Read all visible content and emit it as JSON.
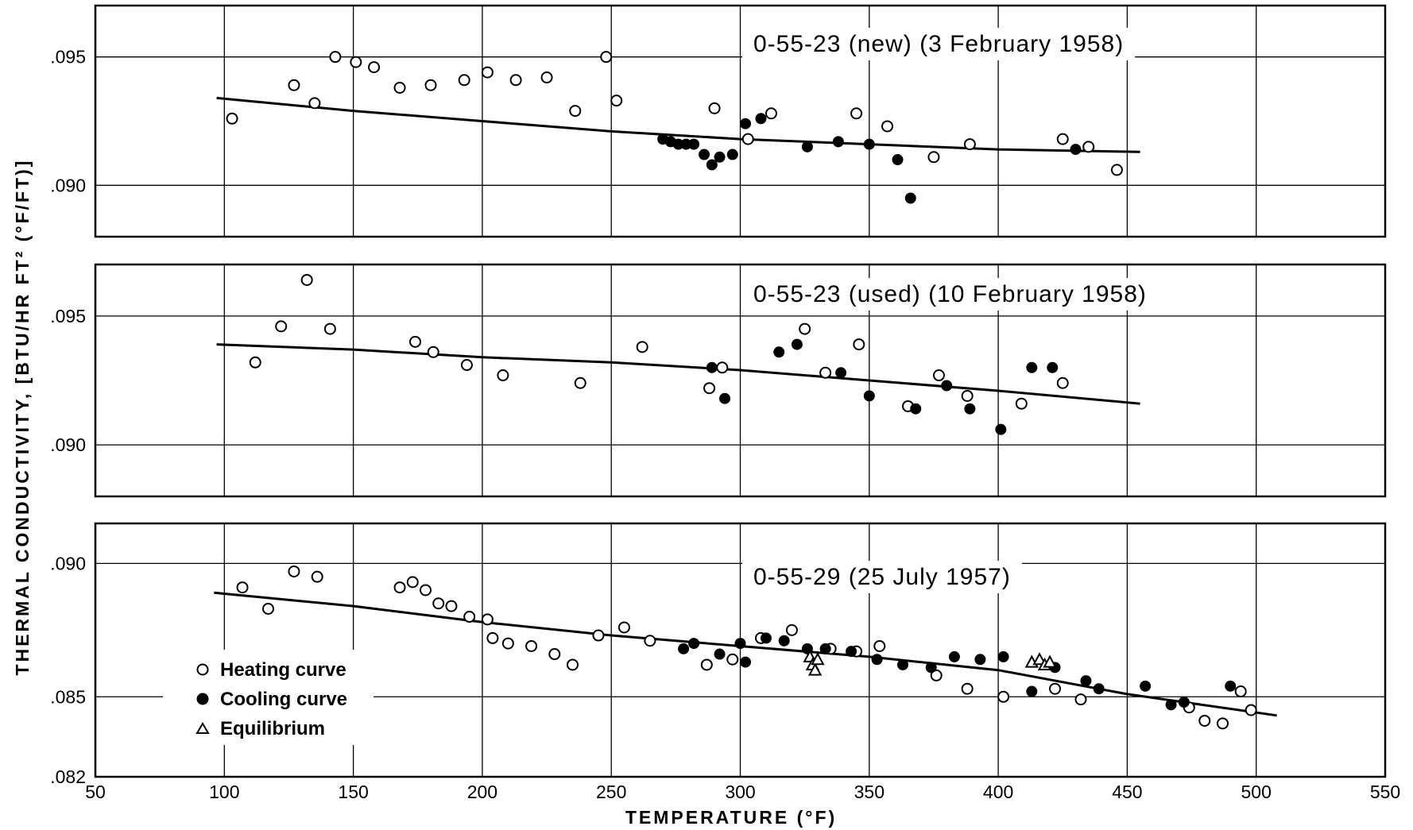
{
  "figure": {
    "xlabel": "TEMPERATURE (°F)",
    "ylabel": "THERMAL CONDUCTIVITY, [BTU/HR FT² (°F/FT)]",
    "legend": {
      "heating": "Heating curve",
      "cooling": "Cooling curve",
      "equilibrium": "Equilibrium"
    }
  },
  "chart_data": [
    {
      "type": "scatter",
      "title": "0-55-23 (new) (3 February 1958)",
      "xlabel": "TEMPERATURE (°F)",
      "ylabel": "THERMAL CONDUCTIVITY, [BTU/HR FT² (°F/FT)]",
      "xlim": [
        50,
        550
      ],
      "ylim": [
        0.088,
        0.097
      ],
      "x_ticks": [
        "50",
        "100",
        "150",
        "200",
        "250",
        "300",
        "350",
        "400",
        "450",
        "500",
        "550"
      ],
      "y_ticks": [
        {
          "value": 0.095,
          "label": ".095"
        },
        {
          "value": 0.09,
          "label": ".090"
        }
      ],
      "grid": true,
      "series": [
        {
          "name": "Heating curve",
          "marker": "open-circle",
          "points": [
            [
              103,
              0.0926
            ],
            [
              127,
              0.0939
            ],
            [
              135,
              0.0932
            ],
            [
              143,
              0.095
            ],
            [
              151,
              0.0948
            ],
            [
              158,
              0.0946
            ],
            [
              168,
              0.0938
            ],
            [
              180,
              0.0939
            ],
            [
              193,
              0.0941
            ],
            [
              202,
              0.0944
            ],
            [
              213,
              0.0941
            ],
            [
              225,
              0.0942
            ],
            [
              236,
              0.0929
            ],
            [
              248,
              0.095
            ],
            [
              252,
              0.0933
            ],
            [
              290,
              0.093
            ],
            [
              303,
              0.0918
            ],
            [
              312,
              0.0928
            ],
            [
              345,
              0.0928
            ],
            [
              357,
              0.0923
            ],
            [
              375,
              0.0911
            ],
            [
              389,
              0.0916
            ],
            [
              425,
              0.0918
            ],
            [
              435,
              0.0915
            ],
            [
              446,
              0.0906
            ]
          ]
        },
        {
          "name": "Cooling curve",
          "marker": "filled-circle",
          "points": [
            [
              270,
              0.0918
            ],
            [
              273,
              0.0917
            ],
            [
              276,
              0.0916
            ],
            [
              279,
              0.0916
            ],
            [
              282,
              0.0916
            ],
            [
              286,
              0.0912
            ],
            [
              289,
              0.0908
            ],
            [
              292,
              0.0911
            ],
            [
              297,
              0.0912
            ],
            [
              302,
              0.0924
            ],
            [
              308,
              0.0926
            ],
            [
              326,
              0.0915
            ],
            [
              338,
              0.0917
            ],
            [
              350,
              0.0916
            ],
            [
              361,
              0.091
            ],
            [
              366,
              0.0895
            ],
            [
              430,
              0.0914
            ]
          ]
        },
        {
          "name": "fit",
          "marker": "line",
          "points": [
            [
              97,
              0.0934
            ],
            [
              150,
              0.0929
            ],
            [
              200,
              0.0925
            ],
            [
              250,
              0.0921
            ],
            [
              300,
              0.0918
            ],
            [
              350,
              0.0916
            ],
            [
              400,
              0.0914
            ],
            [
              455,
              0.0913
            ]
          ]
        }
      ]
    },
    {
      "type": "scatter",
      "title": "0-55-23 (used) (10 February 1958)",
      "xlabel": "TEMPERATURE (°F)",
      "ylabel": "THERMAL CONDUCTIVITY, [BTU/HR FT² (°F/FT)]",
      "xlim": [
        50,
        550
      ],
      "ylim": [
        0.088,
        0.097
      ],
      "x_ticks": [
        "50",
        "100",
        "150",
        "200",
        "250",
        "300",
        "350",
        "400",
        "450",
        "500",
        "550"
      ],
      "y_ticks": [
        {
          "value": 0.095,
          "label": ".095"
        },
        {
          "value": 0.09,
          "label": ".090"
        }
      ],
      "grid": true,
      "series": [
        {
          "name": "Heating curve",
          "marker": "open-circle",
          "points": [
            [
              112,
              0.0932
            ],
            [
              122,
              0.0946
            ],
            [
              132,
              0.0964
            ],
            [
              141,
              0.0945
            ],
            [
              174,
              0.094
            ],
            [
              181,
              0.0936
            ],
            [
              194,
              0.0931
            ],
            [
              208,
              0.0927
            ],
            [
              238,
              0.0924
            ],
            [
              262,
              0.0938
            ],
            [
              288,
              0.0922
            ],
            [
              293,
              0.093
            ],
            [
              325,
              0.0945
            ],
            [
              333,
              0.0928
            ],
            [
              346,
              0.0939
            ],
            [
              365,
              0.0915
            ],
            [
              377,
              0.0927
            ],
            [
              388,
              0.0919
            ],
            [
              409,
              0.0916
            ],
            [
              425,
              0.0924
            ]
          ]
        },
        {
          "name": "Cooling curve",
          "marker": "filled-circle",
          "points": [
            [
              289,
              0.093
            ],
            [
              294,
              0.0918
            ],
            [
              315,
              0.0936
            ],
            [
              322,
              0.0939
            ],
            [
              339,
              0.0928
            ],
            [
              350,
              0.0919
            ],
            [
              368,
              0.0914
            ],
            [
              380,
              0.0923
            ],
            [
              389,
              0.0914
            ],
            [
              401,
              0.0906
            ],
            [
              413,
              0.093
            ],
            [
              421,
              0.093
            ]
          ]
        },
        {
          "name": "fit",
          "marker": "line",
          "points": [
            [
              97,
              0.0939
            ],
            [
              150,
              0.0937
            ],
            [
              200,
              0.0934
            ],
            [
              250,
              0.0932
            ],
            [
              300,
              0.0929
            ],
            [
              350,
              0.0925
            ],
            [
              400,
              0.0921
            ],
            [
              455,
              0.0916
            ]
          ]
        }
      ]
    },
    {
      "type": "scatter",
      "title": "0-55-29 (25 July 1957)",
      "xlabel": "TEMPERATURE (°F)",
      "ylabel": "THERMAL CONDUCTIVITY, [BTU/HR FT² (°F/FT)]",
      "xlim": [
        50,
        550
      ],
      "ylim": [
        0.082,
        0.0915
      ],
      "x_ticks": [
        "50",
        "100",
        "150",
        "200",
        "250",
        "300",
        "350",
        "400",
        "450",
        "500",
        "550"
      ],
      "y_ticks": [
        {
          "value": 0.09,
          "label": ".090"
        },
        {
          "value": 0.085,
          "label": ".085"
        },
        {
          "value": 0.082,
          "label": ".082"
        }
      ],
      "grid": true,
      "series": [
        {
          "name": "Heating curve",
          "marker": "open-circle",
          "points": [
            [
              107,
              0.0891
            ],
            [
              117,
              0.0883
            ],
            [
              127,
              0.0897
            ],
            [
              136,
              0.0895
            ],
            [
              168,
              0.0891
            ],
            [
              173,
              0.0893
            ],
            [
              178,
              0.089
            ],
            [
              183,
              0.0885
            ],
            [
              188,
              0.0884
            ],
            [
              195,
              0.088
            ],
            [
              202,
              0.0879
            ],
            [
              204,
              0.0872
            ],
            [
              210,
              0.087
            ],
            [
              219,
              0.0869
            ],
            [
              228,
              0.0866
            ],
            [
              235,
              0.0862
            ],
            [
              245,
              0.0873
            ],
            [
              255,
              0.0876
            ],
            [
              265,
              0.0871
            ],
            [
              287,
              0.0862
            ],
            [
              297,
              0.0864
            ],
            [
              308,
              0.0872
            ],
            [
              320,
              0.0875
            ],
            [
              335,
              0.0868
            ],
            [
              345,
              0.0867
            ],
            [
              354,
              0.0869
            ],
            [
              376,
              0.0858
            ],
            [
              388,
              0.0853
            ],
            [
              402,
              0.085
            ],
            [
              422,
              0.0853
            ],
            [
              432,
              0.0849
            ],
            [
              474,
              0.0846
            ],
            [
              480,
              0.0841
            ],
            [
              487,
              0.084
            ],
            [
              494,
              0.0852
            ],
            [
              498,
              0.0845
            ]
          ]
        },
        {
          "name": "Cooling curve",
          "marker": "filled-circle",
          "points": [
            [
              278,
              0.0868
            ],
            [
              282,
              0.087
            ],
            [
              292,
              0.0866
            ],
            [
              300,
              0.087
            ],
            [
              302,
              0.0863
            ],
            [
              310,
              0.0872
            ],
            [
              317,
              0.0871
            ],
            [
              326,
              0.0868
            ],
            [
              333,
              0.0868
            ],
            [
              343,
              0.0867
            ],
            [
              353,
              0.0864
            ],
            [
              363,
              0.0862
            ],
            [
              374,
              0.0861
            ],
            [
              383,
              0.0865
            ],
            [
              393,
              0.0864
            ],
            [
              402,
              0.0865
            ],
            [
              413,
              0.0852
            ],
            [
              422,
              0.0861
            ],
            [
              434,
              0.0856
            ],
            [
              439,
              0.0853
            ],
            [
              457,
              0.0854
            ],
            [
              467,
              0.0847
            ],
            [
              472,
              0.0848
            ],
            [
              490,
              0.0854
            ]
          ]
        },
        {
          "name": "Equilibrium",
          "marker": "open-triangle",
          "points": [
            [
              327,
              0.0865
            ],
            [
              328,
              0.0862
            ],
            [
              329,
              0.086
            ],
            [
              330,
              0.0864
            ],
            [
              413,
              0.0863
            ],
            [
              416,
              0.0864
            ],
            [
              418,
              0.0862
            ],
            [
              420,
              0.0863
            ]
          ]
        },
        {
          "name": "fit",
          "marker": "line",
          "points": [
            [
              96,
              0.0889
            ],
            [
              150,
              0.0884
            ],
            [
              200,
              0.0878
            ],
            [
              250,
              0.0873
            ],
            [
              300,
              0.0869
            ],
            [
              350,
              0.0865
            ],
            [
              400,
              0.086
            ],
            [
              450,
              0.0851
            ],
            [
              508,
              0.0843
            ]
          ]
        }
      ]
    }
  ]
}
